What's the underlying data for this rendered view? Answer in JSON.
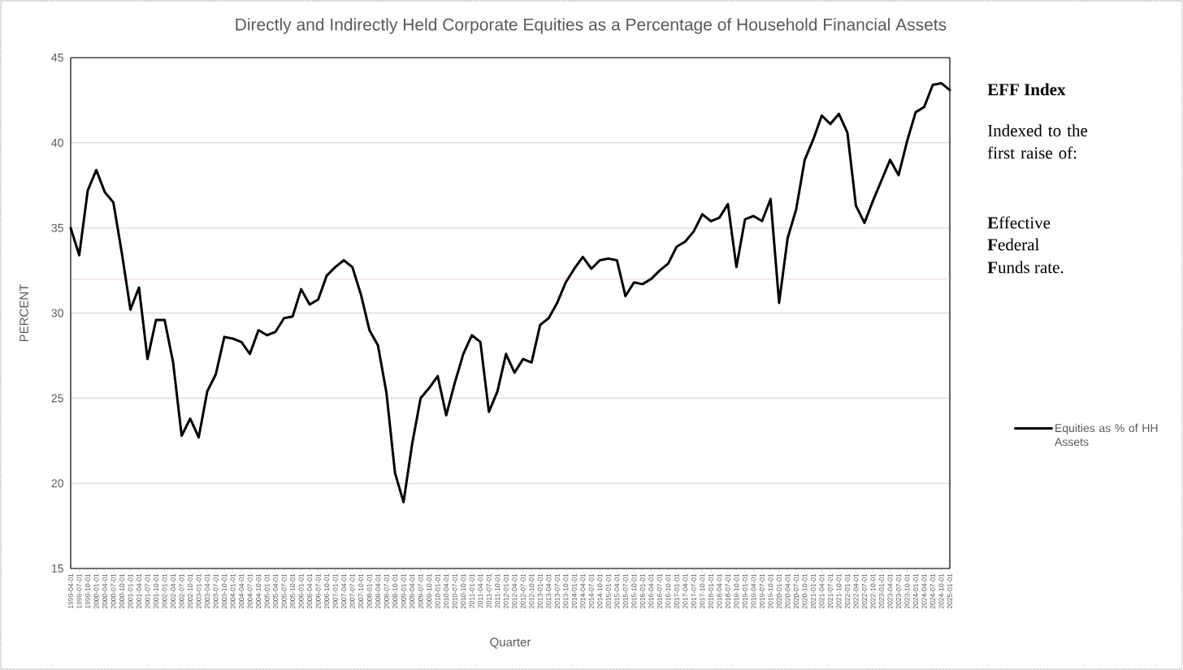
{
  "chart_data": {
    "type": "line",
    "title": "Directly and Indirectly Held Corporate Equities as a Percentage of Household  Financial Assets",
    "xlabel": "Quarter",
    "ylabel": "PERCENT",
    "categories": [
      "1999-04-01",
      "1999-07-01",
      "1999-10-01",
      "2000-01-01",
      "2000-04-01",
      "2000-07-01",
      "2000-10-01",
      "2001-01-01",
      "2001-04-01",
      "2001-07-01",
      "2001-10-01",
      "2002-01-01",
      "2002-04-01",
      "2002-07-01",
      "2002-10-01",
      "2003-01-01",
      "2003-04-01",
      "2003-07-01",
      "2003-10-01",
      "2004-01-01",
      "2004-04-01",
      "2004-07-01",
      "2004-10-01",
      "2005-01-01",
      "2005-04-01",
      "2005-07-01",
      "2005-10-01",
      "2006-01-01",
      "2006-04-01",
      "2006-07-01",
      "2006-10-01",
      "2007-01-01",
      "2007-04-01",
      "2007-07-01",
      "2007-10-01",
      "2008-01-01",
      "2008-04-01",
      "2008-07-01",
      "2008-10-01",
      "2009-01-01",
      "2009-04-01",
      "2009-07-01",
      "2009-10-01",
      "2010-01-01",
      "2010-04-01",
      "2010-07-01",
      "2010-10-01",
      "2011-01-01",
      "2011-04-01",
      "2011-07-01",
      "2011-10-01",
      "2012-01-01",
      "2012-04-01",
      "2012-07-01",
      "2012-10-01",
      "2013-01-01",
      "2013-04-01",
      "2013-07-01",
      "2013-10-01",
      "2014-01-01",
      "2014-04-01",
      "2014-07-01",
      "2014-10-01",
      "2015-01-01",
      "2015-04-01",
      "2015-07-01",
      "2015-10-01",
      "2016-01-01",
      "2016-04-01",
      "2016-07-01",
      "2016-10-01",
      "2017-01-01",
      "2017-04-01",
      "2017-07-01",
      "2017-10-01",
      "2018-01-01",
      "2018-04-01",
      "2018-07-01",
      "2018-10-01",
      "2019-01-01",
      "2019-04-01",
      "2019-07-01",
      "2019-10-01",
      "2020-01-01",
      "2020-04-01",
      "2020-07-01",
      "2020-10-01",
      "2021-01-01",
      "2021-04-01",
      "2021-07-01",
      "2021-10-01",
      "2022-01-01",
      "2022-04-01",
      "2022-07-01",
      "2022-10-01",
      "2023-01-01",
      "2023-04-01",
      "2023-07-01",
      "2023-10-01",
      "2024-01-01",
      "2024-04-01",
      "2024-07-01",
      "2024-10-01",
      "2025-01-01"
    ],
    "series": [
      {
        "name": "Equities as % of HH Assets",
        "color": "#000000",
        "values": [
          35.0,
          33.4,
          37.2,
          38.4,
          37.1,
          36.5,
          33.5,
          30.2,
          31.5,
          27.3,
          29.6,
          29.6,
          27.1,
          22.8,
          23.8,
          22.7,
          25.4,
          26.4,
          28.6,
          28.5,
          28.3,
          27.6,
          29.0,
          28.7,
          28.9,
          29.7,
          29.8,
          31.4,
          30.5,
          30.8,
          32.2,
          32.7,
          33.1,
          32.7,
          31.1,
          29.0,
          28.1,
          25.3,
          20.6,
          18.9,
          22.3,
          25.0,
          25.6,
          26.3,
          24.0,
          25.9,
          27.6,
          28.7,
          28.3,
          24.2,
          25.4,
          27.6,
          26.5,
          27.3,
          27.1,
          29.3,
          29.7,
          30.6,
          31.8,
          32.6,
          33.3,
          32.6,
          33.1,
          33.2,
          33.1,
          31.0,
          31.8,
          31.7,
          32.0,
          32.5,
          32.9,
          33.9,
          34.2,
          34.8,
          35.8,
          35.4,
          35.6,
          36.4,
          32.7,
          35.5,
          35.7,
          35.4,
          36.7,
          30.6,
          34.4,
          36.1,
          39.0,
          40.2,
          41.6,
          41.1,
          41.7,
          40.6,
          36.3,
          35.3,
          36.6,
          37.8,
          39.0,
          38.1,
          40.1,
          41.8,
          42.1,
          43.4,
          43.5,
          43.1
        ]
      }
    ],
    "ylim": [
      15,
      45
    ],
    "yticks": [
      15,
      20,
      25,
      30,
      35,
      40,
      45
    ],
    "grid": "y",
    "legend": "right",
    "marker": "none",
    "line_style": "solid",
    "ref_lines": [
      {
        "axis": "y",
        "value": 32,
        "color": "#f4b8b8"
      }
    ],
    "annotations": [
      "**EFF Index**",
      "Indexed to the first raise of:",
      "**E**ffective",
      "**F**ederal",
      "**F**unds rate."
    ]
  }
}
